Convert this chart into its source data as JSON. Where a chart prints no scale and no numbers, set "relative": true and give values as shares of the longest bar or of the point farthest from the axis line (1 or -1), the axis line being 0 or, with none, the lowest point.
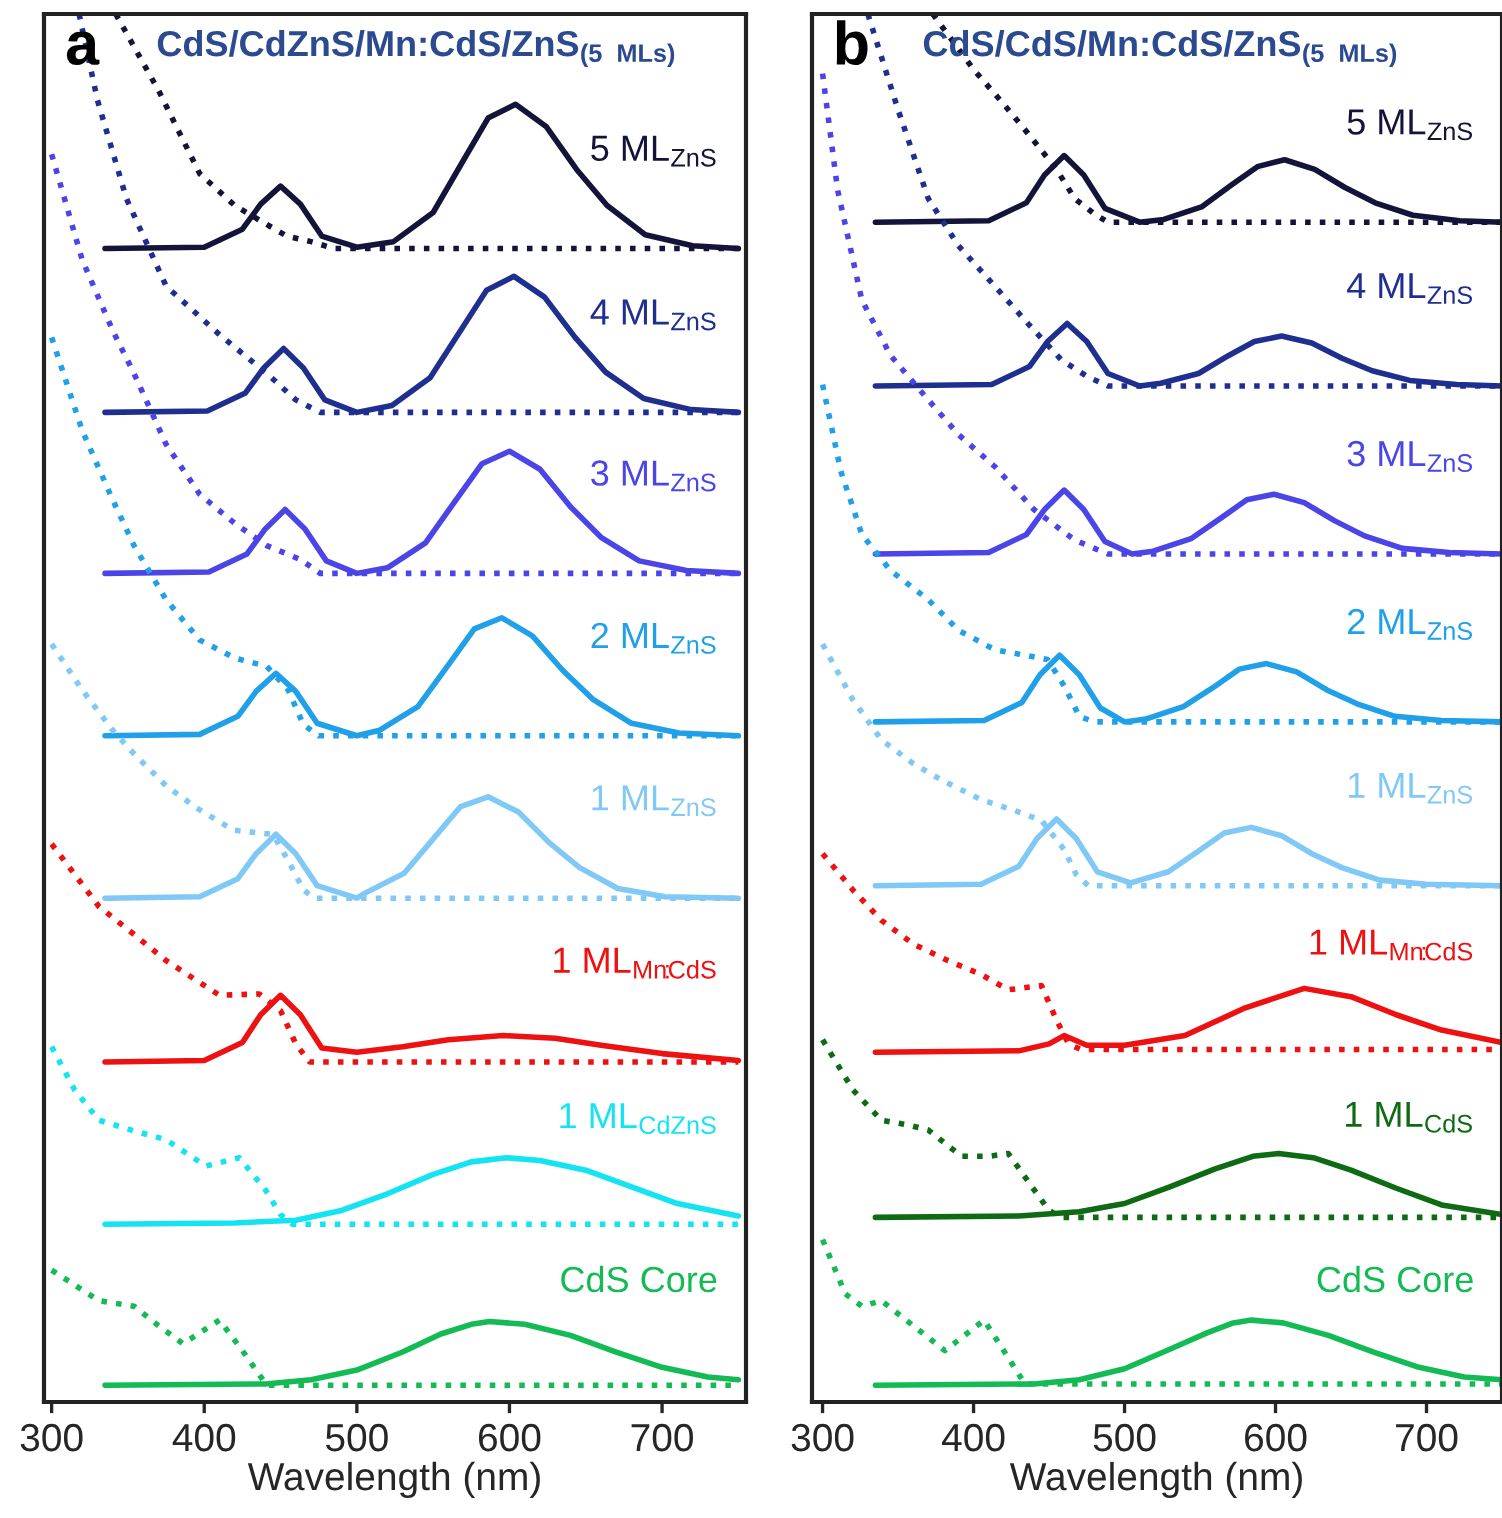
{
  "chart_data": [
    {
      "type": "line",
      "title": "CdS/CdZnS/Mn:CdS/ZnS$_{(5 MLs)}$",
      "annotations": [
        "a"
      ],
      "xlabel": "Wavelength (nm)",
      "relative": true,
      "xlim": [
        295,
        755
      ],
      "xticks": [
        300,
        400,
        500,
        600,
        700
      ],
      "series": [
        {
          "name": "5 ML$_{ZnS}$",
          "color": "#14143a",
          "line_style": "solid",
          "x": [
            335,
            400,
            425,
            437,
            450,
            463,
            477,
            500,
            524,
            550,
            569,
            586,
            604,
            624,
            644,
            664,
            689,
            720,
            750
          ],
          "values": [
            0.831,
            0.832,
            0.845,
            0.863,
            0.876,
            0.863,
            0.84,
            0.832,
            0.836,
            0.857,
            0.893,
            0.925,
            0.935,
            0.919,
            0.888,
            0.862,
            0.841,
            0.833,
            0.831
          ]
        },
        {
          "color": "#14143a",
          "line_style": "dotted",
          "x": [
            342,
            370,
            397,
            420,
            440,
            454,
            470,
            485,
            600,
            750
          ],
          "values": [
            1.0,
            0.945,
            0.885,
            0.862,
            0.849,
            0.84,
            0.836,
            0.831,
            0.831,
            0.831
          ]
        },
        {
          "name": "4 ML$_{ZnS}$",
          "color": "#1f2f8f",
          "line_style": "solid",
          "x": [
            335,
            402,
            427,
            439,
            452,
            465,
            479,
            500,
            523,
            548,
            568,
            585,
            603,
            623,
            643,
            663,
            688,
            719,
            750
          ],
          "values": [
            0.713,
            0.714,
            0.727,
            0.745,
            0.759,
            0.745,
            0.722,
            0.713,
            0.718,
            0.738,
            0.772,
            0.801,
            0.811,
            0.796,
            0.767,
            0.742,
            0.723,
            0.715,
            0.713
          ]
        },
        {
          "color": "#1f2f8f",
          "line_style": "dotted",
          "x": [
            318,
            330,
            349,
            375,
            410,
            441,
            460,
            476,
            600,
            750
          ],
          "values": [
            1.0,
            0.938,
            0.867,
            0.804,
            0.769,
            0.741,
            0.722,
            0.713,
            0.713,
            0.713
          ]
        },
        {
          "name": "3 ML$_{ZnS}$",
          "color": "#4b45e8",
          "line_style": "solid",
          "x": [
            335,
            403,
            428,
            440,
            453,
            466,
            480,
            500,
            520,
            545,
            565,
            582,
            600,
            620,
            640,
            660,
            685,
            716,
            750
          ],
          "values": [
            0.597,
            0.598,
            0.611,
            0.629,
            0.643,
            0.629,
            0.606,
            0.597,
            0.601,
            0.619,
            0.65,
            0.676,
            0.685,
            0.672,
            0.645,
            0.623,
            0.606,
            0.599,
            0.597
          ]
        },
        {
          "color": "#4b45e8",
          "line_style": "dotted",
          "x": [
            300,
            320,
            340,
            354,
            375,
            397,
            420,
            441,
            463,
            476,
            600,
            750
          ],
          "values": [
            0.899,
            0.823,
            0.772,
            0.741,
            0.69,
            0.654,
            0.633,
            0.617,
            0.607,
            0.597,
            0.597,
            0.597
          ]
        },
        {
          "name": "2 ML$_{ZnS}$",
          "color": "#1fa0e8",
          "line_style": "solid",
          "x": [
            335,
            397,
            422,
            434,
            447,
            460,
            474,
            500,
            515,
            540,
            560,
            577,
            595,
            615,
            635,
            655,
            680,
            711,
            750
          ],
          "values": [
            0.48,
            0.481,
            0.494,
            0.512,
            0.525,
            0.512,
            0.489,
            0.48,
            0.484,
            0.501,
            0.531,
            0.557,
            0.565,
            0.552,
            0.527,
            0.506,
            0.489,
            0.482,
            0.48
          ]
        },
        {
          "color": "#1fa0e8",
          "line_style": "dotted",
          "x": [
            300,
            320,
            340,
            354,
            375,
            397,
            420,
            441,
            455,
            465,
            475,
            600,
            750
          ],
          "values": [
            0.767,
            0.7,
            0.65,
            0.617,
            0.578,
            0.549,
            0.536,
            0.53,
            0.513,
            0.488,
            0.48,
            0.48,
            0.48
          ]
        },
        {
          "name": "1 ML$_{ZnS}$",
          "color": "#80c8f5",
          "line_style": "solid",
          "x": [
            335,
            397,
            422,
            434,
            447,
            460,
            474,
            500,
            506,
            531,
            551,
            568,
            586,
            606,
            626,
            646,
            671,
            702,
            750
          ],
          "values": [
            0.363,
            0.364,
            0.377,
            0.395,
            0.409,
            0.395,
            0.372,
            0.363,
            0.367,
            0.381,
            0.407,
            0.429,
            0.436,
            0.425,
            0.403,
            0.385,
            0.37,
            0.364,
            0.363
          ]
        },
        {
          "color": "#80c8f5",
          "line_style": "dotted",
          "x": [
            300,
            320,
            340,
            354,
            375,
            395,
            419,
            445,
            455,
            465,
            472,
            600,
            750
          ],
          "values": [
            0.546,
            0.513,
            0.484,
            0.467,
            0.444,
            0.428,
            0.412,
            0.409,
            0.39,
            0.369,
            0.363,
            0.363,
            0.363
          ]
        },
        {
          "name": "1 ML$_{Mn:CdS}$",
          "color": "#ee1111",
          "line_style": "solid",
          "x": [
            335,
            400,
            425,
            437,
            450,
            463,
            477,
            500,
            530,
            560,
            596,
            630,
            660,
            700,
            750
          ],
          "values": [
            0.245,
            0.246,
            0.259,
            0.279,
            0.293,
            0.279,
            0.255,
            0.252,
            0.256,
            0.261,
            0.264,
            0.262,
            0.257,
            0.251,
            0.246
          ]
        },
        {
          "color": "#ee1111",
          "line_style": "dotted",
          "x": [
            300,
            331,
            355,
            375,
            410,
            436,
            450,
            460,
            469,
            600,
            750
          ],
          "values": [
            0.402,
            0.357,
            0.336,
            0.318,
            0.293,
            0.294,
            0.282,
            0.258,
            0.245,
            0.245,
            0.245
          ]
        },
        {
          "name": "1 ML$_{CdZnS}$",
          "color": "#14e4f2",
          "line_style": "solid",
          "x": [
            335,
            420,
            460,
            490,
            520,
            550,
            575,
            598,
            620,
            650,
            680,
            710,
            750
          ],
          "values": [
            0.128,
            0.129,
            0.131,
            0.138,
            0.15,
            0.164,
            0.173,
            0.176,
            0.174,
            0.167,
            0.155,
            0.143,
            0.134
          ]
        },
        {
          "color": "#14e4f2",
          "line_style": "dotted",
          "x": [
            300,
            315,
            331,
            355,
            375,
            401,
            423,
            440,
            450,
            458,
            600,
            750
          ],
          "values": [
            0.256,
            0.225,
            0.203,
            0.195,
            0.189,
            0.17,
            0.176,
            0.153,
            0.135,
            0.128,
            0.128,
            0.128
          ]
        },
        {
          "name": "CdS Core",
          "color": "#14bb55",
          "line_style": "solid",
          "x": [
            335,
            440,
            470,
            500,
            530,
            555,
            575,
            587,
            610,
            640,
            670,
            700,
            730,
            750
          ],
          "values": [
            0.012,
            0.013,
            0.016,
            0.023,
            0.036,
            0.049,
            0.056,
            0.058,
            0.056,
            0.048,
            0.036,
            0.025,
            0.018,
            0.016
          ]
        },
        {
          "color": "#14bb55",
          "line_style": "dotted",
          "x": [
            300,
            331,
            354,
            370,
            386,
            410,
            425,
            441,
            600,
            750
          ],
          "values": [
            0.095,
            0.073,
            0.069,
            0.055,
            0.042,
            0.059,
            0.037,
            0.012,
            0.012,
            0.012
          ]
        }
      ]
    },
    {
      "type": "line",
      "title": "CdS/CdS/Mn:CdS/ZnS$_{(5 MLs)}$",
      "annotations": [
        "b"
      ],
      "xlabel": "Wavelength (nm)",
      "relative": true,
      "xlim": [
        293,
        750
      ],
      "xticks": [
        300,
        400,
        500,
        600,
        700
      ],
      "series": [
        {
          "name": "5 ML$_{ZnS}$",
          "color": "#14143a",
          "line_style": "solid",
          "x": [
            335,
            410,
            435,
            447,
            460,
            473,
            487,
            510,
            526,
            551,
            571,
            588,
            606,
            626,
            646,
            666,
            691,
            722,
            750
          ],
          "values": [
            0.85,
            0.851,
            0.864,
            0.884,
            0.898,
            0.884,
            0.86,
            0.85,
            0.852,
            0.861,
            0.877,
            0.89,
            0.895,
            0.888,
            0.875,
            0.864,
            0.855,
            0.851,
            0.85
          ]
        },
        {
          "color": "#14143a",
          "line_style": "dotted",
          "x": [
            373,
            400,
            420,
            436,
            455,
            467,
            480,
            489,
            600,
            750
          ],
          "values": [
            1.0,
            0.96,
            0.935,
            0.914,
            0.888,
            0.867,
            0.856,
            0.85,
            0.85,
            0.85
          ]
        },
        {
          "name": "4 ML$_{ZnS}$",
          "color": "#1f2f8f",
          "line_style": "solid",
          "x": [
            335,
            412,
            437,
            449,
            462,
            475,
            489,
            510,
            524,
            549,
            569,
            586,
            604,
            624,
            644,
            664,
            689,
            720,
            750
          ],
          "values": [
            0.732,
            0.733,
            0.746,
            0.764,
            0.777,
            0.764,
            0.741,
            0.732,
            0.734,
            0.741,
            0.754,
            0.764,
            0.768,
            0.763,
            0.752,
            0.743,
            0.736,
            0.733,
            0.732
          ]
        },
        {
          "color": "#1f2f8f",
          "line_style": "dotted",
          "x": [
            330,
            350,
            370,
            390,
            414,
            436,
            458,
            475,
            489,
            600,
            750
          ],
          "values": [
            1.0,
            0.931,
            0.867,
            0.833,
            0.804,
            0.777,
            0.751,
            0.739,
            0.732,
            0.732,
            0.732
          ]
        },
        {
          "name": "3 ML$_{ZnS}$",
          "color": "#4b45e8",
          "line_style": "solid",
          "x": [
            335,
            410,
            435,
            447,
            460,
            473,
            487,
            505,
            519,
            544,
            564,
            581,
            599,
            619,
            639,
            659,
            684,
            715,
            750
          ],
          "values": [
            0.611,
            0.612,
            0.625,
            0.643,
            0.657,
            0.643,
            0.62,
            0.611,
            0.613,
            0.622,
            0.637,
            0.65,
            0.654,
            0.648,
            0.635,
            0.624,
            0.615,
            0.612,
            0.611
          ]
        },
        {
          "color": "#4b45e8",
          "line_style": "dotted",
          "x": [
            300,
            310,
            326,
            345,
            370,
            390,
            414,
            440,
            467,
            480,
            489,
            600,
            750
          ],
          "values": [
            0.957,
            0.873,
            0.794,
            0.754,
            0.722,
            0.697,
            0.674,
            0.643,
            0.621,
            0.615,
            0.611,
            0.611,
            0.611
          ]
        },
        {
          "name": "2 ML$_{ZnS}$",
          "color": "#1fa0e8",
          "line_style": "solid",
          "x": [
            335,
            407,
            432,
            444,
            457,
            470,
            484,
            500,
            514,
            539,
            559,
            576,
            594,
            614,
            634,
            654,
            679,
            710,
            750
          ],
          "values": [
            0.49,
            0.491,
            0.504,
            0.524,
            0.538,
            0.524,
            0.5,
            0.49,
            0.492,
            0.501,
            0.515,
            0.528,
            0.532,
            0.526,
            0.513,
            0.503,
            0.494,
            0.491,
            0.49
          ]
        },
        {
          "color": "#1fa0e8",
          "line_style": "dotted",
          "x": [
            300,
            312,
            326,
            345,
            370,
            390,
            414,
            449,
            460,
            470,
            480,
            600,
            750
          ],
          "values": [
            0.733,
            0.671,
            0.625,
            0.599,
            0.578,
            0.556,
            0.542,
            0.535,
            0.516,
            0.494,
            0.49,
            0.49,
            0.49
          ]
        },
        {
          "name": "1 ML$_{ZnS}$",
          "color": "#80c8f5",
          "line_style": "solid",
          "x": [
            335,
            405,
            430,
            442,
            455,
            468,
            482,
            504,
            529,
            549,
            566,
            584,
            604,
            624,
            644,
            669,
            700,
            750
          ],
          "values": [
            0.372,
            0.373,
            0.386,
            0.406,
            0.42,
            0.406,
            0.382,
            0.374,
            0.382,
            0.397,
            0.41,
            0.414,
            0.408,
            0.395,
            0.385,
            0.376,
            0.373,
            0.372
          ]
        },
        {
          "color": "#80c8f5",
          "line_style": "dotted",
          "x": [
            300,
            320,
            339,
            360,
            379,
            405,
            425,
            445,
            460,
            468,
            476,
            600,
            750
          ],
          "values": [
            0.546,
            0.506,
            0.477,
            0.46,
            0.448,
            0.434,
            0.427,
            0.419,
            0.398,
            0.38,
            0.372,
            0.372,
            0.372
          ]
        },
        {
          "name": "1 ML$_{Mn:CdS}$",
          "color": "#ee1111",
          "line_style": "solid",
          "x": [
            335,
            430,
            450,
            460,
            475,
            500,
            540,
            580,
            619,
            650,
            680,
            710,
            750
          ],
          "values": [
            0.252,
            0.253,
            0.258,
            0.264,
            0.257,
            0.257,
            0.264,
            0.284,
            0.298,
            0.292,
            0.279,
            0.268,
            0.259
          ]
        },
        {
          "color": "#ee1111",
          "line_style": "dotted",
          "x": [
            300,
            320,
            339,
            360,
            383,
            405,
            423,
            445,
            455,
            463,
            471,
            600,
            750
          ],
          "values": [
            0.395,
            0.369,
            0.347,
            0.33,
            0.318,
            0.308,
            0.297,
            0.3,
            0.275,
            0.258,
            0.254,
            0.254,
            0.254
          ]
        },
        {
          "name": "1 ML$_{CdS}$",
          "color": "#0e6b14",
          "line_style": "solid",
          "x": [
            335,
            430,
            470,
            500,
            530,
            560,
            585,
            602,
            625,
            650,
            680,
            710,
            750
          ],
          "values": [
            0.133,
            0.134,
            0.137,
            0.143,
            0.155,
            0.168,
            0.177,
            0.179,
            0.176,
            0.167,
            0.154,
            0.142,
            0.135
          ]
        },
        {
          "color": "#0e6b14",
          "line_style": "dotted",
          "x": [
            300,
            320,
            339,
            355,
            370,
            392,
            410,
            423,
            440,
            450,
            458,
            600,
            750
          ],
          "values": [
            0.261,
            0.225,
            0.203,
            0.2,
            0.196,
            0.177,
            0.177,
            0.179,
            0.153,
            0.138,
            0.133,
            0.133,
            0.133
          ]
        },
        {
          "name": "CdS Core",
          "color": "#14bb55",
          "line_style": "solid",
          "x": [
            335,
            440,
            470,
            500,
            530,
            555,
            572,
            584,
            605,
            635,
            665,
            695,
            725,
            750
          ],
          "values": [
            0.012,
            0.013,
            0.016,
            0.024,
            0.038,
            0.05,
            0.057,
            0.059,
            0.057,
            0.048,
            0.036,
            0.025,
            0.018,
            0.016
          ]
        },
        {
          "color": "#14bb55",
          "line_style": "dotted",
          "x": [
            300,
            315,
            326,
            339,
            360,
            381,
            407,
            420,
            434,
            600,
            750
          ],
          "values": [
            0.117,
            0.078,
            0.069,
            0.073,
            0.055,
            0.037,
            0.059,
            0.037,
            0.013,
            0.013,
            0.013
          ]
        }
      ]
    }
  ]
}
